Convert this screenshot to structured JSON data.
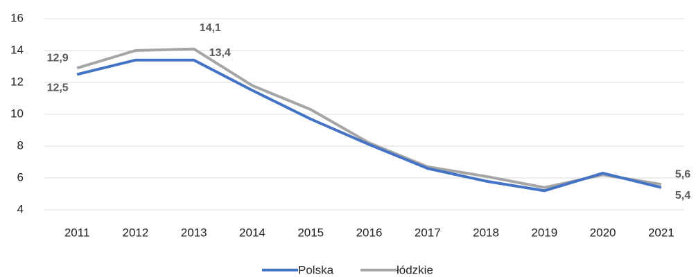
{
  "chart_data": {
    "type": "line",
    "categories": [
      "2011",
      "2012",
      "2013",
      "2014",
      "2015",
      "2016",
      "2017",
      "2018",
      "2019",
      "2020",
      "2021"
    ],
    "series": [
      {
        "name": "Polska",
        "color": "#4472c4",
        "values": [
          12.5,
          13.4,
          13.4,
          11.5,
          9.7,
          8.1,
          6.6,
          5.8,
          5.2,
          6.3,
          5.4
        ],
        "value_labels": [
          "12,5",
          null,
          "13,4",
          null,
          null,
          null,
          null,
          null,
          null,
          null,
          "5,4"
        ]
      },
      {
        "name": "łódzkie",
        "color": "#a5a5a5",
        "values": [
          12.9,
          14.0,
          14.1,
          11.8,
          10.3,
          8.2,
          6.7,
          6.1,
          5.4,
          6.2,
          5.6
        ],
        "value_labels": [
          "12,9",
          null,
          "14,1",
          null,
          null,
          null,
          null,
          null,
          null,
          null,
          "5,6"
        ]
      }
    ],
    "ylim": [
      4,
      16
    ],
    "yticks": [
      4,
      6,
      8,
      10,
      12,
      14,
      16
    ],
    "grid": true,
    "legend": "bottom"
  }
}
